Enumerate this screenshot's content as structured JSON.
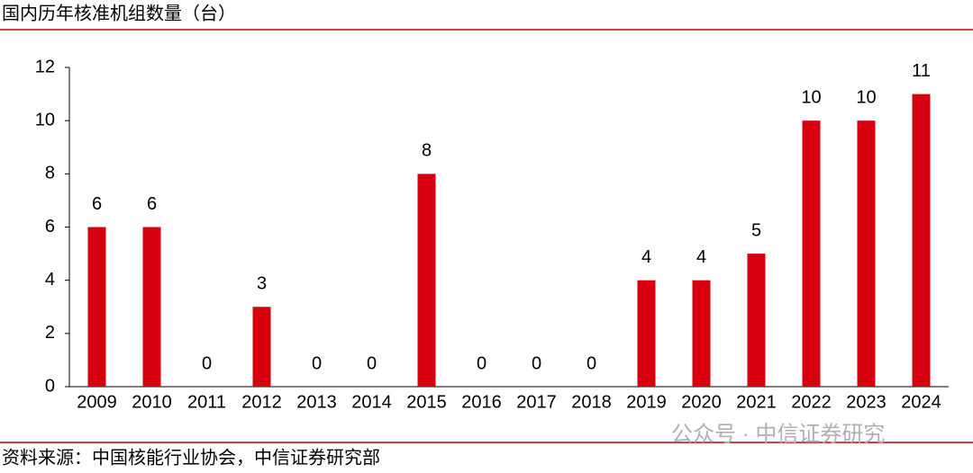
{
  "chart_data": {
    "type": "bar",
    "title": "国内历年核准机组数量（台）",
    "categories": [
      "2009",
      "2010",
      "2011",
      "2012",
      "2013",
      "2014",
      "2015",
      "2016",
      "2017",
      "2018",
      "2019",
      "2020",
      "2021",
      "2022",
      "2023",
      "2024"
    ],
    "values": [
      6,
      6,
      0,
      3,
      0,
      0,
      8,
      0,
      0,
      0,
      4,
      4,
      5,
      10,
      10,
      11
    ],
    "color": "#d7000f",
    "ylim": [
      0,
      12
    ],
    "yticks": [
      0,
      2,
      4,
      6,
      8,
      10,
      12
    ],
    "grid": false,
    "source": "资料来源：中国核能行业协会，中信证券研究部",
    "watermark": "公众号 · 中信证券研究"
  }
}
